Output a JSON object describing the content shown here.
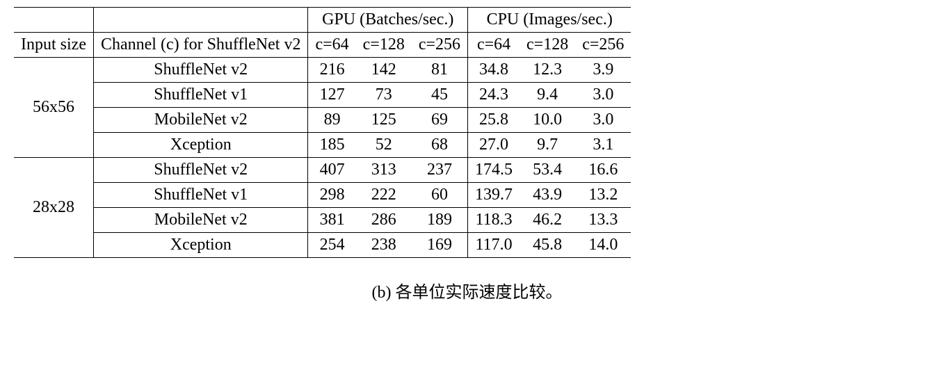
{
  "table": {
    "background_color": "#ffffff",
    "text_color": "#000000",
    "font_family": "Times New Roman / Computer Modern",
    "font_size_pt": 18,
    "rule_color": "#000000",
    "header": {
      "gpu_label": "GPU (Batches/sec.)",
      "cpu_label": "CPU (Images/sec.)",
      "input_size_label": "Input size",
      "channel_label": "Channel (c) for ShuffleNet v2",
      "c_labels": [
        "c=64",
        "c=128",
        "c=256"
      ]
    },
    "groups": [
      {
        "input_size": "56x56",
        "rows": [
          {
            "network": "ShuffleNet v2",
            "gpu": [
              "216",
              "142",
              "81"
            ],
            "cpu": [
              "34.8",
              "12.3",
              "3.9"
            ]
          },
          {
            "network": "ShuffleNet v1",
            "gpu": [
              "127",
              "73",
              "45"
            ],
            "cpu": [
              "24.3",
              "9.4",
              "3.0"
            ]
          },
          {
            "network": "MobileNet v2",
            "gpu": [
              "89",
              "125",
              "69"
            ],
            "cpu": [
              "25.8",
              "10.0",
              "3.0"
            ]
          },
          {
            "network": "Xception",
            "gpu": [
              "185",
              "52",
              "68"
            ],
            "cpu": [
              "27.0",
              "9.7",
              "3.1"
            ]
          }
        ]
      },
      {
        "input_size": "28x28",
        "rows": [
          {
            "network": "ShuffleNet v2",
            "gpu": [
              "407",
              "313",
              "237"
            ],
            "cpu": [
              "174.5",
              "53.4",
              "16.6"
            ]
          },
          {
            "network": "ShuffleNet v1",
            "gpu": [
              "298",
              "222",
              "60"
            ],
            "cpu": [
              "139.7",
              "43.9",
              "13.2"
            ]
          },
          {
            "network": "MobileNet v2",
            "gpu": [
              "381",
              "286",
              "189"
            ],
            "cpu": [
              "118.3",
              "46.2",
              "13.3"
            ]
          },
          {
            "network": "Xception",
            "gpu": [
              "254",
              "238",
              "169"
            ],
            "cpu": [
              "117.0",
              "45.8",
              "14.0"
            ]
          }
        ]
      }
    ]
  },
  "caption": "(b) 各单位实际速度比较。"
}
